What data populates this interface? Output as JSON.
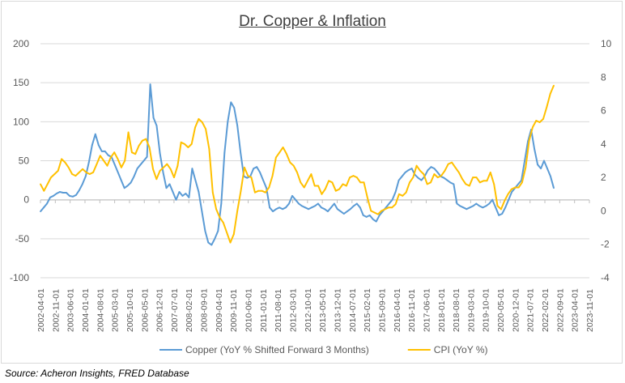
{
  "chart_data": {
    "type": "line",
    "title": "Dr. Copper & Inflation",
    "source": "Source: Acheron Insights, FRED Database",
    "x_ticks": [
      "2002-04-01",
      "2002-11-01",
      "2003-06-01",
      "2004-01-01",
      "2004-08-01",
      "2005-03-01",
      "2005-10-01",
      "2006-05-01",
      "2006-12-01",
      "2007-07-01",
      "2008-02-01",
      "2008-09-01",
      "2009-04-01",
      "2009-11-01",
      "2010-06-01",
      "2011-01-01",
      "2011-08-01",
      "2012-03-01",
      "2012-10-01",
      "2013-05-01",
      "2013-12-01",
      "2014-07-01",
      "2015-02-01",
      "2015-09-01",
      "2016-04-01",
      "2016-11-01",
      "2017-06-01",
      "2018-01-01",
      "2018-08-01",
      "2019-03-01",
      "2019-10-01",
      "2020-05-01",
      "2020-12-01",
      "2021-07-01",
      "2022-02-01",
      "2022-09-01",
      "2023-04-01",
      "2023-11-01"
    ],
    "y_left": {
      "min": -100,
      "max": 200,
      "ticks": [
        -100,
        -50,
        0,
        50,
        100,
        150,
        200
      ]
    },
    "y_right": {
      "min": -4,
      "max": 10,
      "ticks": [
        -4,
        -2,
        0,
        2,
        4,
        6,
        8,
        10
      ]
    },
    "series": [
      {
        "name": "Copper (YoY % Shifted Forward 3 Months)",
        "axis": "left",
        "color": "#5b9bd5",
        "values": [
          -15,
          -10,
          -5,
          3,
          5,
          8,
          10,
          9,
          9,
          5,
          4,
          6,
          12,
          20,
          30,
          48,
          70,
          84,
          70,
          62,
          62,
          57,
          55,
          45,
          35,
          25,
          15,
          18,
          22,
          30,
          40,
          45,
          50,
          55,
          148,
          105,
          95,
          60,
          35,
          15,
          20,
          10,
          0,
          10,
          5,
          8,
          3,
          40,
          25,
          10,
          -15,
          -40,
          -55,
          -58,
          -50,
          -40,
          -5,
          60,
          100,
          125,
          118,
          95,
          60,
          30,
          28,
          30,
          40,
          42,
          35,
          25,
          15,
          -10,
          -15,
          -12,
          -10,
          -12,
          -10,
          -5,
          5,
          0,
          -5,
          -8,
          -10,
          -12,
          -10,
          -8,
          -5,
          -10,
          -12,
          -15,
          -10,
          -5,
          -12,
          -15,
          -18,
          -15,
          -12,
          -8,
          -5,
          -10,
          -20,
          -22,
          -20,
          -25,
          -28,
          -20,
          -15,
          -10,
          -5,
          0,
          10,
          25,
          30,
          35,
          38,
          40,
          32,
          28,
          25,
          30,
          38,
          42,
          40,
          35,
          30,
          28,
          25,
          22,
          20,
          -5,
          -8,
          -10,
          -12,
          -10,
          -8,
          -5,
          -8,
          -10,
          -8,
          -5,
          0,
          -10,
          -20,
          -18,
          -10,
          0,
          10,
          15,
          20,
          25,
          50,
          75,
          90,
          65,
          45,
          40,
          50,
          40,
          30,
          15
        ]
      },
      {
        "name": "CPI (YoY %)",
        "axis": "right",
        "color": "#ffc000",
        "values": [
          1.6,
          1.2,
          1.6,
          2.0,
          2.2,
          2.4,
          3.1,
          2.9,
          2.6,
          2.2,
          2.1,
          2.3,
          2.5,
          2.3,
          2.2,
          2.3,
          2.8,
          3.3,
          3.0,
          2.7,
          3.2,
          3.5,
          3.1,
          2.6,
          3.0,
          4.7,
          3.5,
          3.4,
          3.9,
          4.2,
          4.3,
          3.8,
          2.5,
          1.9,
          2.4,
          2.6,
          2.8,
          2.5,
          2.0,
          2.7,
          4.1,
          4.0,
          3.8,
          4.0,
          5.0,
          5.5,
          5.3,
          4.9,
          3.7,
          1.1,
          0.1,
          -0.4,
          -0.7,
          -1.3,
          -1.9,
          -1.4,
          0.0,
          1.2,
          2.6,
          2.1,
          2.0,
          1.1,
          1.2,
          1.2,
          1.1,
          1.4,
          2.1,
          3.2,
          3.5,
          3.8,
          3.4,
          2.9,
          2.7,
          2.3,
          1.7,
          1.4,
          1.8,
          2.2,
          1.5,
          1.5,
          1.0,
          1.3,
          1.8,
          1.7,
          1.2,
          1.3,
          1.6,
          1.5,
          2.0,
          2.1,
          2.0,
          1.7,
          1.7,
          0.8,
          0.0,
          -0.1,
          -0.2,
          0.0,
          0.1,
          0.2,
          0.2,
          0.4,
          1.0,
          0.9,
          1.1,
          1.7,
          2.0,
          2.7,
          2.4,
          2.2,
          1.6,
          1.7,
          2.2,
          2.0,
          2.1,
          2.4,
          2.8,
          2.9,
          2.6,
          2.3,
          1.9,
          1.6,
          1.5,
          2.0,
          2.0,
          1.7,
          1.8,
          1.8,
          2.3,
          1.6,
          0.3,
          0.1,
          0.6,
          1.0,
          1.3,
          1.4,
          1.4,
          1.7,
          2.6,
          4.2,
          5.0,
          5.4,
          5.3,
          5.5,
          6.2,
          7.0,
          7.5
        ]
      }
    ],
    "grid": true,
    "legend_position": "bottom"
  }
}
